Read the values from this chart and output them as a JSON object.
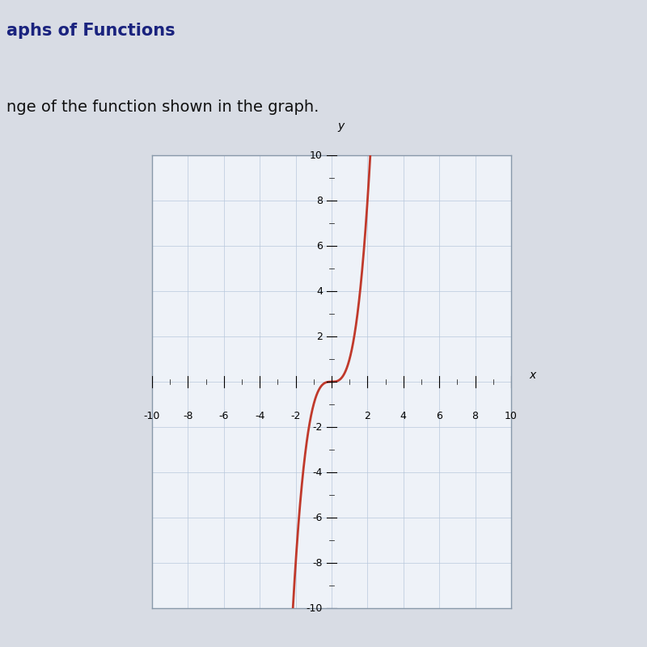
{
  "title": "aphs of Functions",
  "subtitle": "nge of the function shown in the graph.",
  "xlim": [
    -10,
    10
  ],
  "ylim": [
    -10,
    10
  ],
  "xticks": [
    -10,
    -8,
    -6,
    -4,
    -2,
    2,
    4,
    6,
    8,
    10
  ],
  "yticks": [
    -10,
    -8,
    -6,
    -4,
    -2,
    2,
    4,
    6,
    8,
    10
  ],
  "curve_color": "#c0392b",
  "curve_linewidth": 2.0,
  "grid_color": "#b8c8dc",
  "grid_linewidth": 0.5,
  "plot_bg": "#eef2f8",
  "outer_bg_top": "#b8c4d4",
  "outer_bg_bottom": "#d8dce4",
  "box_bg": "#f0f4f8",
  "xlabel": "x",
  "ylabel": "y",
  "title_color": "#1a237e",
  "subtitle_color": "#111111",
  "title_fontsize": 15,
  "subtitle_fontsize": 14,
  "tick_label_fontsize": 9
}
